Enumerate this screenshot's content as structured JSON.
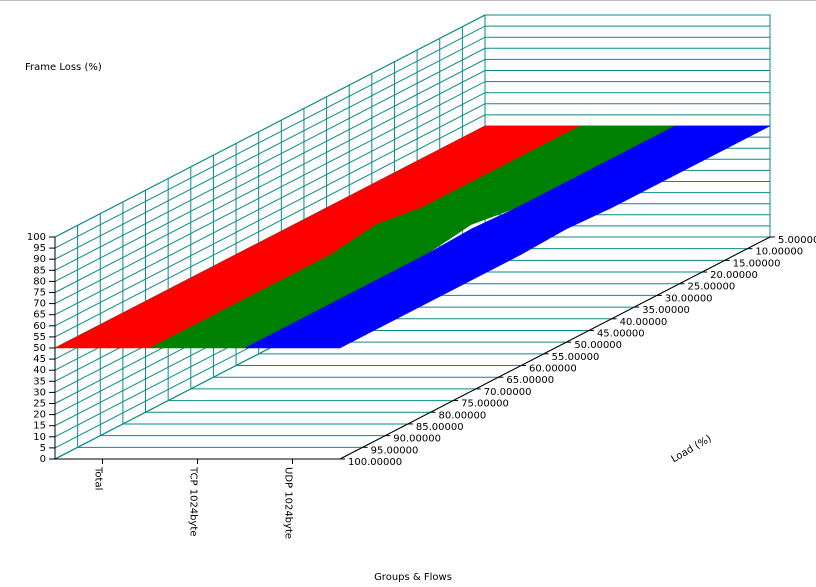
{
  "chart_data": {
    "type": "surface3d",
    "zlabel": "Frame Loss (%)",
    "ylabel": "Load (%)",
    "xlabel": "Groups & Flows",
    "groups": [
      "Total",
      "TCP 1024byte",
      "UDP 1024byte"
    ],
    "load_categories": [
      "5.00000",
      "10.00000",
      "15.00000",
      "20.00000",
      "25.00000",
      "30.00000",
      "35.00000",
      "40.00000",
      "45.00000",
      "50.00000",
      "55.00000",
      "60.00000",
      "65.00000",
      "70.00000",
      "75.00000",
      "80.00000",
      "85.00000",
      "90.00000",
      "95.00000",
      "100.00000"
    ],
    "zlim": [
      0,
      100
    ],
    "zticks": [
      0,
      5,
      10,
      15,
      20,
      25,
      30,
      35,
      40,
      45,
      50,
      55,
      60,
      65,
      70,
      75,
      80,
      85,
      90,
      95,
      100
    ],
    "series": [
      {
        "name": "Total",
        "color": "#ff0000",
        "values": [
          50,
          50,
          50,
          50,
          50,
          50,
          50,
          50,
          50,
          50,
          50,
          50,
          50,
          50,
          50,
          50,
          50,
          50,
          50,
          50
        ]
      },
      {
        "name": "TCP 1024byte",
        "color": "#008000",
        "values": [
          50,
          50,
          50,
          50,
          50,
          50,
          50,
          50,
          51.5,
          53,
          51.5,
          50,
          50,
          50,
          50,
          50,
          50,
          50,
          50,
          50
        ]
      },
      {
        "name": "UDP 1024byte",
        "color": "#0000ff",
        "values": [
          50,
          50,
          50,
          50,
          50,
          50,
          50,
          50,
          50.5,
          51,
          50.5,
          50,
          50,
          50,
          50,
          50,
          50,
          50,
          50,
          50
        ]
      }
    ]
  }
}
